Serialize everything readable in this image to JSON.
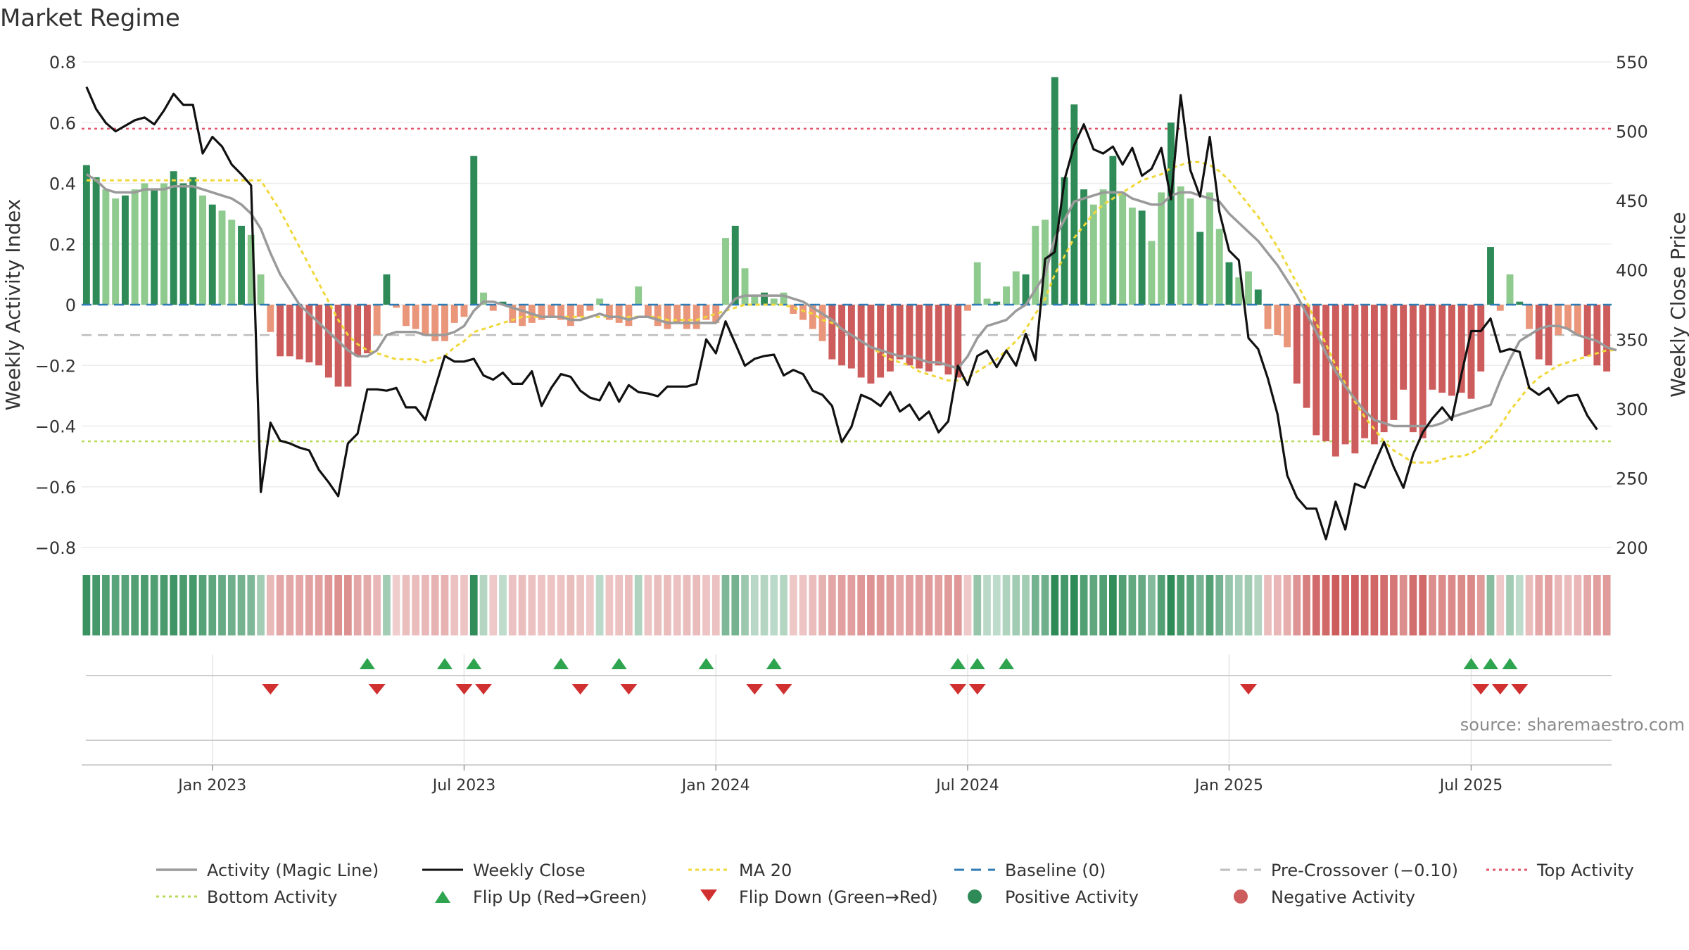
{
  "page": {
    "title": "Market Regime",
    "source": "source: sharemaestro.com"
  },
  "colors": {
    "magic": "#9a9a9a",
    "close": "#111111",
    "ma20": "#f0d83a",
    "baseline": "#2f7bb5",
    "precross": "#bdbdbd",
    "top": "#e2556b",
    "bottom": "#b9db59",
    "flip_up": "#2ea44f",
    "flip_down": "#d03030",
    "pos_strong": "#2e8b57",
    "pos_light": "#8fca8f",
    "neg_strong": "#cd5c5c",
    "neg_light": "#e9967a"
  },
  "chart_data": {
    "type": "bar",
    "title": "Market Regime",
    "ylabel": "Weekly Activity Index",
    "y2label": "Weekly Close Price",
    "ylim": [
      -0.8,
      0.8
    ],
    "y2lim": [
      200,
      550
    ],
    "yticks": [
      "0.8",
      "0.6",
      "0.4",
      "0.2",
      "0",
      "−0.2",
      "−0.4",
      "−0.6",
      "−0.8"
    ],
    "y2ticks": [
      "550",
      "500",
      "450",
      "400",
      "350",
      "300",
      "250",
      "200"
    ],
    "xticks": [
      {
        "label": "Jan 2023",
        "week": 13
      },
      {
        "label": "Jul 2023",
        "week": 39
      },
      {
        "label": "Jan 2024",
        "week": 65
      },
      {
        "label": "Jul 2024",
        "week": 91
      },
      {
        "label": "Jan 2025",
        "week": 118
      },
      {
        "label": "Jul 2025",
        "week": 143
      }
    ],
    "grid": true,
    "legend_position": "bottom",
    "top_activity": 0.58,
    "bottom_activity": -0.45,
    "pre_crossover": -0.1,
    "activity": [
      0.46,
      0.42,
      0.38,
      0.35,
      0.36,
      0.38,
      0.4,
      0.38,
      0.4,
      0.44,
      0.4,
      0.42,
      0.36,
      0.33,
      0.31,
      0.28,
      0.26,
      0.23,
      0.1,
      -0.09,
      -0.17,
      -0.17,
      -0.18,
      -0.19,
      -0.2,
      -0.24,
      -0.27,
      -0.27,
      -0.17,
      -0.16,
      -0.1,
      0.1,
      -0.01,
      -0.07,
      -0.08,
      -0.1,
      -0.12,
      -0.12,
      -0.06,
      -0.04,
      0.49,
      0.04,
      -0.02,
      0.01,
      -0.06,
      -0.07,
      -0.06,
      -0.05,
      -0.04,
      -0.05,
      -0.07,
      -0.04,
      -0.02,
      0.02,
      -0.05,
      -0.06,
      -0.07,
      0.06,
      -0.04,
      -0.07,
      -0.08,
      -0.06,
      -0.08,
      -0.08,
      -0.05,
      -0.06,
      0.22,
      0.26,
      0.12,
      0.03,
      0.04,
      0.02,
      0.04,
      -0.03,
      -0.05,
      -0.08,
      -0.12,
      -0.18,
      -0.2,
      -0.21,
      -0.24,
      -0.26,
      -0.24,
      -0.22,
      -0.18,
      -0.2,
      -0.21,
      -0.22,
      -0.2,
      -0.23,
      -0.24,
      -0.02,
      0.14,
      0.02,
      0.01,
      0.06,
      0.11,
      0.1,
      0.26,
      0.28,
      0.75,
      0.42,
      0.66,
      0.38,
      0.33,
      0.38,
      0.49,
      0.37,
      0.32,
      0.31,
      0.21,
      0.37,
      0.6,
      0.39,
      0.35,
      0.24,
      0.37,
      0.25,
      0.14,
      0.09,
      0.11,
      0.05,
      -0.08,
      -0.1,
      -0.14,
      -0.26,
      -0.34,
      -0.43,
      -0.45,
      -0.5,
      -0.46,
      -0.49,
      -0.44,
      -0.46,
      -0.42,
      -0.38,
      -0.28,
      -0.42,
      -0.44,
      -0.28,
      -0.29,
      -0.3,
      -0.29,
      -0.31,
      -0.22,
      0.19,
      -0.02,
      0.1,
      0.01,
      -0.08,
      -0.18,
      -0.2,
      -0.1,
      -0.08,
      -0.1,
      -0.17,
      -0.2,
      -0.22
    ],
    "close": [
      532,
      516,
      506,
      500,
      504,
      508,
      510,
      505,
      515,
      527,
      519,
      519,
      484,
      496,
      489,
      476,
      469,
      461,
      240,
      290,
      277,
      275,
      272,
      270,
      256,
      247,
      237,
      275,
      282,
      314,
      314,
      313,
      315,
      301,
      301,
      292,
      315,
      338,
      334,
      334,
      336,
      324,
      321,
      326,
      318,
      318,
      327,
      302,
      315,
      325,
      323,
      313,
      308,
      306,
      319,
      305,
      317,
      312,
      311,
      309,
      316,
      316,
      316,
      318,
      350,
      340,
      363,
      347,
      331,
      336,
      338,
      339,
      324,
      328,
      325,
      313,
      310,
      302,
      276,
      287,
      310,
      307,
      302,
      312,
      298,
      303,
      292,
      298,
      283,
      291,
      331,
      317,
      338,
      342,
      330,
      342,
      331,
      354,
      335,
      408,
      413,
      465,
      490,
      505,
      487,
      484,
      489,
      476,
      488,
      468,
      473,
      488,
      451,
      526,
      472,
      453,
      496,
      442,
      414,
      407,
      351,
      343,
      322,
      296,
      252,
      236,
      228,
      228,
      206,
      233,
      213,
      246,
      243,
      260,
      276,
      258,
      243,
      267,
      283,
      293,
      301,
      292,
      325,
      356,
      356,
      365,
      341,
      343,
      341,
      315,
      310,
      315,
      304,
      309,
      310,
      295,
      285
    ],
    "magic": [
      0.43,
      0.41,
      0.38,
      0.37,
      0.37,
      0.37,
      0.38,
      0.38,
      0.38,
      0.39,
      0.39,
      0.39,
      0.38,
      0.37,
      0.36,
      0.35,
      0.33,
      0.3,
      0.25,
      0.17,
      0.1,
      0.05,
      0.0,
      -0.03,
      -0.06,
      -0.09,
      -0.12,
      -0.15,
      -0.17,
      -0.17,
      -0.15,
      -0.1,
      -0.09,
      -0.09,
      -0.09,
      -0.1,
      -0.1,
      -0.1,
      -0.09,
      -0.07,
      -0.02,
      0.01,
      0.01,
      0.0,
      -0.01,
      -0.02,
      -0.03,
      -0.04,
      -0.04,
      -0.04,
      -0.05,
      -0.05,
      -0.04,
      -0.03,
      -0.04,
      -0.04,
      -0.05,
      -0.04,
      -0.04,
      -0.05,
      -0.06,
      -0.06,
      -0.06,
      -0.06,
      -0.06,
      -0.06,
      -0.02,
      0.02,
      0.03,
      0.03,
      0.03,
      0.03,
      0.03,
      0.02,
      0.01,
      -0.01,
      -0.03,
      -0.05,
      -0.08,
      -0.1,
      -0.12,
      -0.14,
      -0.15,
      -0.16,
      -0.17,
      -0.17,
      -0.18,
      -0.19,
      -0.19,
      -0.2,
      -0.21,
      -0.17,
      -0.11,
      -0.07,
      -0.06,
      -0.05,
      -0.02,
      0.0,
      0.05,
      0.1,
      0.22,
      0.28,
      0.34,
      0.35,
      0.36,
      0.37,
      0.37,
      0.37,
      0.35,
      0.34,
      0.33,
      0.33,
      0.36,
      0.37,
      0.37,
      0.36,
      0.35,
      0.34,
      0.3,
      0.27,
      0.24,
      0.21,
      0.17,
      0.13,
      0.08,
      0.03,
      -0.03,
      -0.09,
      -0.16,
      -0.22,
      -0.27,
      -0.31,
      -0.35,
      -0.38,
      -0.39,
      -0.4,
      -0.4,
      -0.4,
      -0.4,
      -0.4,
      -0.39,
      -0.37,
      -0.36,
      -0.35,
      -0.34,
      -0.33,
      -0.25,
      -0.18,
      -0.12,
      -0.1,
      -0.08,
      -0.07,
      -0.07,
      -0.08,
      -0.1,
      -0.11,
      -0.12,
      -0.14,
      -0.15
    ],
    "ma20": [
      0.41,
      0.41,
      0.41,
      0.41,
      0.41,
      0.41,
      0.41,
      0.41,
      0.41,
      0.41,
      0.41,
      0.41,
      0.41,
      0.41,
      0.41,
      0.41,
      0.41,
      0.41,
      0.41,
      0.36,
      0.31,
      0.25,
      0.19,
      0.13,
      0.07,
      0.01,
      -0.05,
      -0.1,
      -0.13,
      -0.15,
      -0.16,
      -0.17,
      -0.18,
      -0.18,
      -0.18,
      -0.19,
      -0.18,
      -0.17,
      -0.14,
      -0.12,
      -0.09,
      -0.08,
      -0.07,
      -0.06,
      -0.05,
      -0.04,
      -0.04,
      -0.04,
      -0.04,
      -0.04,
      -0.04,
      -0.04,
      -0.04,
      -0.04,
      -0.04,
      -0.04,
      -0.04,
      -0.04,
      -0.04,
      -0.04,
      -0.05,
      -0.05,
      -0.05,
      -0.05,
      -0.04,
      -0.03,
      -0.02,
      -0.01,
      0.0,
      0.0,
      0.0,
      0.0,
      0.0,
      -0.01,
      -0.02,
      -0.03,
      -0.05,
      -0.06,
      -0.08,
      -0.1,
      -0.12,
      -0.14,
      -0.16,
      -0.18,
      -0.19,
      -0.2,
      -0.22,
      -0.23,
      -0.24,
      -0.25,
      -0.25,
      -0.24,
      -0.22,
      -0.2,
      -0.18,
      -0.15,
      -0.12,
      -0.08,
      -0.03,
      0.02,
      0.1,
      0.16,
      0.22,
      0.26,
      0.3,
      0.33,
      0.35,
      0.37,
      0.39,
      0.41,
      0.42,
      0.43,
      0.45,
      0.46,
      0.47,
      0.47,
      0.46,
      0.44,
      0.41,
      0.37,
      0.33,
      0.29,
      0.24,
      0.19,
      0.13,
      0.07,
      0.01,
      -0.06,
      -0.13,
      -0.2,
      -0.26,
      -0.32,
      -0.37,
      -0.41,
      -0.45,
      -0.48,
      -0.5,
      -0.52,
      -0.52,
      -0.52,
      -0.51,
      -0.5,
      -0.5,
      -0.49,
      -0.47,
      -0.44,
      -0.4,
      -0.35,
      -0.31,
      -0.27,
      -0.24,
      -0.22,
      -0.2,
      -0.19,
      -0.18,
      -0.17,
      -0.16,
      -0.15,
      -0.15
    ],
    "flip_up_weeks": [
      29,
      37,
      40,
      49,
      55,
      64,
      71,
      90,
      92,
      95,
      143,
      145,
      147
    ],
    "flip_down_weeks": [
      19,
      30,
      39,
      41,
      51,
      56,
      69,
      72,
      90,
      92,
      120,
      144,
      146,
      148
    ],
    "legend": [
      "Activity (Magic Line)",
      "Weekly Close",
      "MA 20",
      "Baseline (0)",
      "Pre-Crossover (−0.10)",
      "Top Activity",
      "Bottom Activity",
      "Flip Up (Red→Green)",
      "Flip Down (Green→Red)",
      "Positive Activity",
      "Negative Activity"
    ]
  }
}
